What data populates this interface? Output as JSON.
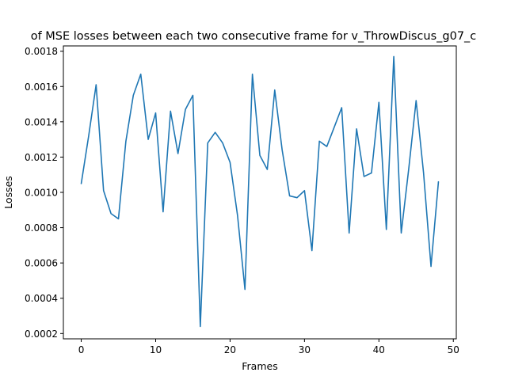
{
  "chart_data": {
    "type": "line",
    "title": "of MSE losses between each two consecutive frame for v_ThrowDiscus_g07_c",
    "xlabel": "Frames",
    "ylabel": "Losses",
    "xlim": [
      -2.4,
      50.4
    ],
    "ylim": [
      0.00017,
      0.00183
    ],
    "x_ticks": [
      0,
      10,
      20,
      30,
      40,
      50
    ],
    "y_ticks": [
      0.0002,
      0.0004,
      0.0006,
      0.0008,
      0.001,
      0.0012,
      0.0014,
      0.0016,
      0.0018
    ],
    "y_tick_labels": [
      "0.0002",
      "0.0004",
      "0.0006",
      "0.0008",
      "0.0010",
      "0.0012",
      "0.0014",
      "0.0016",
      "0.0018"
    ],
    "grid": false,
    "series": [
      {
        "color": "#1f77b4",
        "x": [
          0,
          1,
          2,
          3,
          4,
          5,
          6,
          7,
          8,
          9,
          10,
          11,
          12,
          13,
          14,
          15,
          16,
          17,
          18,
          19,
          20,
          21,
          22,
          23,
          24,
          25,
          26,
          27,
          28,
          29,
          30,
          31,
          32,
          33,
          34,
          35,
          36,
          37,
          38,
          39,
          40,
          41,
          42,
          43,
          44,
          45,
          46,
          47,
          48
        ],
        "values": [
          0.00105,
          0.00132,
          0.00161,
          0.00101,
          0.00088,
          0.00085,
          0.00129,
          0.00155,
          0.00167,
          0.0013,
          0.00145,
          0.00089,
          0.00146,
          0.00122,
          0.00147,
          0.00155,
          0.00024,
          0.00128,
          0.00134,
          0.00128,
          0.00117,
          0.00087,
          0.00045,
          0.00167,
          0.00121,
          0.00113,
          0.00158,
          0.00124,
          0.00098,
          0.00097,
          0.00101,
          0.00067,
          0.00129,
          0.00126,
          0.00137,
          0.00148,
          0.00077,
          0.00136,
          0.00109,
          0.00111,
          0.00151,
          0.00079,
          0.00177,
          0.00077,
          0.00113,
          0.00152,
          0.00111,
          0.00058,
          0.00106
        ]
      }
    ]
  }
}
